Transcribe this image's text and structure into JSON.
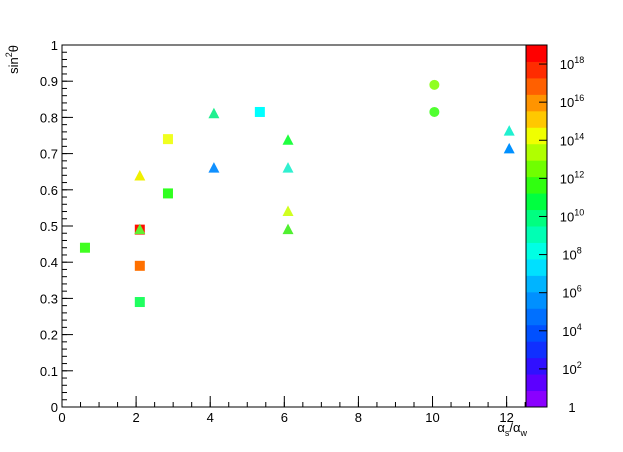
{
  "chart_data": {
    "type": "scatter",
    "xlabel": "α_s/α_w",
    "ylabel": "sin^2θ",
    "xlim": [
      0,
      12.55
    ],
    "ylim": [
      0,
      1
    ],
    "xticks": [
      0,
      2,
      4,
      6,
      8,
      10,
      12
    ],
    "yticks": [
      0,
      0.1,
      0.2,
      0.3,
      0.4,
      0.5,
      0.6,
      0.7,
      0.8,
      0.9,
      1
    ],
    "zlim": [
      1,
      1e+19
    ],
    "zlog": true,
    "zticks": [
      {
        "value": 1,
        "label": "1"
      },
      {
        "value": 100,
        "label": "10^2"
      },
      {
        "value": 10000,
        "label": "10^4"
      },
      {
        "value": 1000000,
        "label": "10^6"
      },
      {
        "value": 100000000,
        "label": "10^8"
      },
      {
        "value": 10000000000,
        "label": "10^10"
      },
      {
        "value": 1000000000000,
        "label": "10^12"
      },
      {
        "value": 100000000000000,
        "label": "10^14"
      },
      {
        "value": 10000000000000000,
        "label": "10^16"
      },
      {
        "value": 1000000000000000000,
        "label": "10^18"
      }
    ],
    "palette": [
      "#8a00ff",
      "#5c00ff",
      "#3010ff",
      "#1030ff",
      "#0050ff",
      "#0070ff",
      "#0090ff",
      "#00b4ff",
      "#00e0ff",
      "#00ffe4",
      "#00ffb4",
      "#00ff80",
      "#00ff40",
      "#30ff10",
      "#70ff00",
      "#b0ff00",
      "#f0ff00",
      "#ffc800",
      "#ff9400",
      "#ff6000",
      "#ff2c00",
      "#ff0000"
    ],
    "series": [
      {
        "marker": "square",
        "x": [
          0.62,
          2.1,
          2.1,
          2.1,
          2.86,
          2.86,
          5.34
        ],
        "values": [
          0.44,
          0.49,
          0.39,
          0.29,
          0.74,
          0.59,
          0.815
        ],
        "colors": [
          "#40ff20",
          "#ff1000",
          "#ff7000",
          "#20ff60",
          "#f0ff20",
          "#30ff20",
          "#00ffff"
        ]
      },
      {
        "marker": "triangle",
        "x": [
          2.1,
          2.1,
          4.1,
          4.1,
          6.1,
          6.1,
          6.1,
          6.1,
          12.07,
          12.07
        ],
        "values": [
          0.49,
          0.638,
          0.81,
          0.66,
          0.737,
          0.66,
          0.54,
          0.49,
          0.762,
          0.713
        ],
        "colors": [
          "#60f030",
          "#f0f000",
          "#20f090",
          "#1090ff",
          "#20ff40",
          "#30f0d0",
          "#d0ff20",
          "#50f030",
          "#20f0d0",
          "#0090ff"
        ]
      },
      {
        "marker": "circle",
        "x": [
          10.05,
          10.05
        ],
        "values": [
          0.89,
          0.815
        ],
        "colors": [
          "#90ff20",
          "#50ff30"
        ]
      }
    ]
  }
}
